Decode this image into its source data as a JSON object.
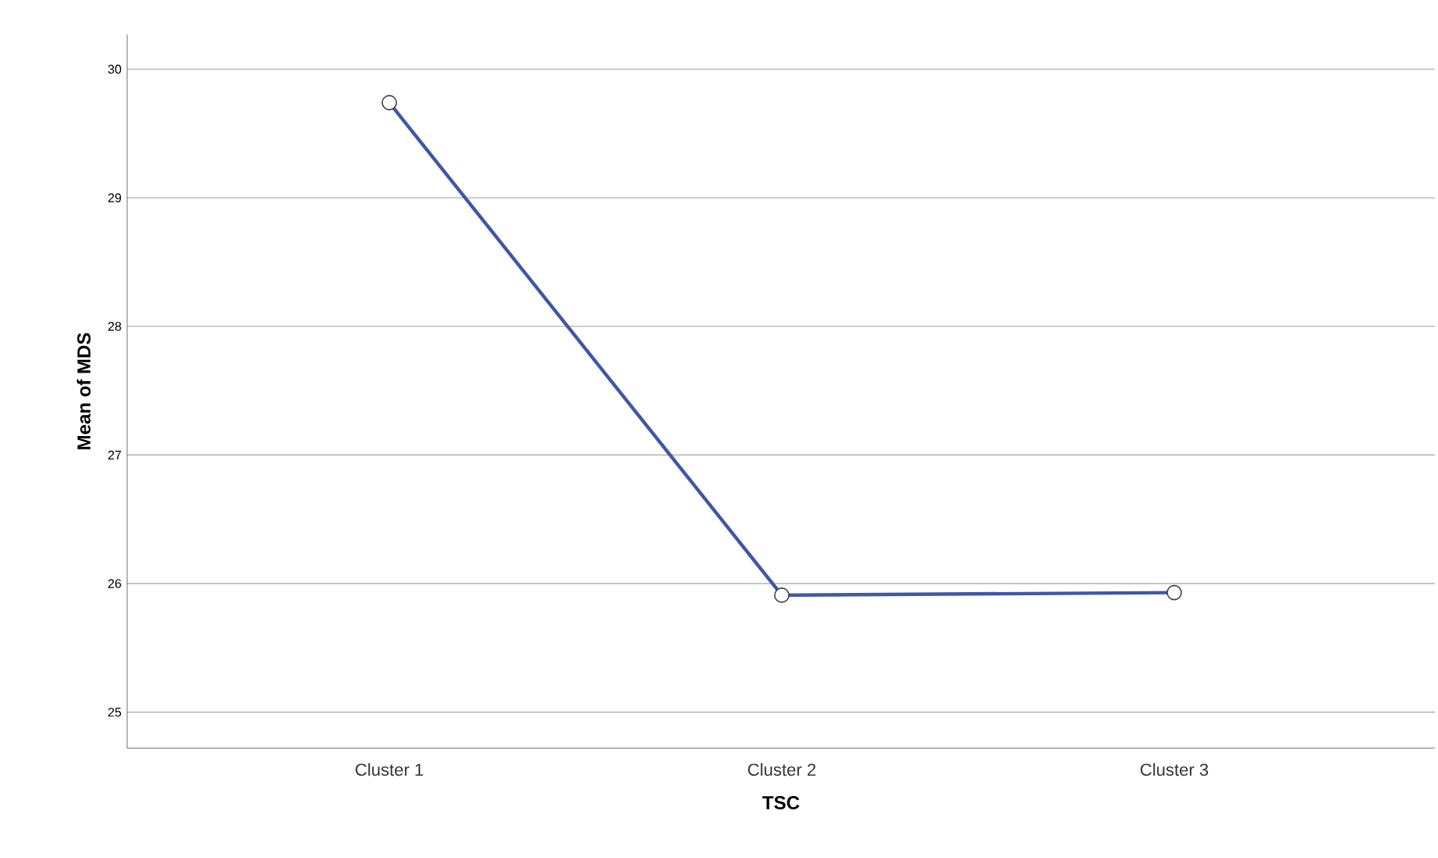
{
  "chart_data": {
    "type": "line",
    "xlabel": "TSC",
    "ylabel": "Mean of MDS",
    "categories": [
      "Cluster 1",
      "Cluster 2",
      "Cluster 3"
    ],
    "series": [
      {
        "color": "#3f57a6",
        "values": [
          29.74,
          25.91,
          25.93
        ]
      }
    ],
    "ylim": [
      24.72,
      30.27
    ],
    "yticks": [
      25,
      26,
      27,
      28,
      29,
      30
    ],
    "grid": "y",
    "marker": "circle",
    "line_style": "solid"
  }
}
